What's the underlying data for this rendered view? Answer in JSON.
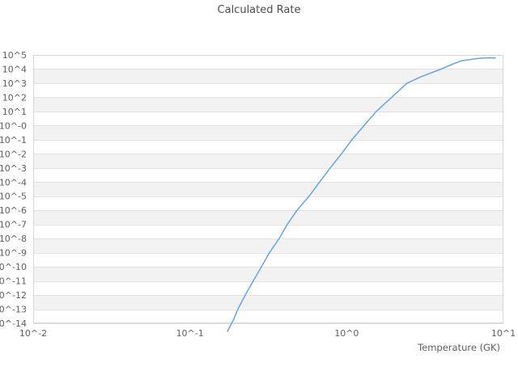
{
  "title": "Calculated Rate",
  "colors": {
    "line": "#6ba3e0",
    "band": "#f2f2f2",
    "grid": "#e2e2e2",
    "frame": "#d6d6d6",
    "title_text": "#4c4c4c",
    "tick_text": "#5f5f5f",
    "background": "#ffffff"
  },
  "chart_data": {
    "type": "line",
    "title": "Calculated Rate",
    "xlabel": "Temperature (GK)",
    "ylabel": "",
    "x_scale": "log10",
    "y_scale": "log10",
    "xlim_log10": [
      -2,
      1
    ],
    "ylim_log10": [
      -14,
      5
    ],
    "x_tick_labels": [
      "10^-2",
      "10^-1",
      "10^0",
      "10^1"
    ],
    "x_tick_log10": [
      -2,
      -1,
      0,
      1
    ],
    "y_tick_labels": [
      "10^5",
      "10^4",
      "10^3",
      "10^2",
      "10^1",
      "10^-0",
      "10^-1",
      "10^-2",
      "10^-3",
      "10^-4",
      "10^-5",
      "10^-6",
      "10^-7",
      "10^-8",
      "10^-9",
      "10^-10",
      "10^-11",
      "10^-12",
      "10^-13",
      "10^-14"
    ],
    "y_tick_log10": [
      5,
      4,
      3,
      2,
      1,
      0,
      -1,
      -2,
      -3,
      -4,
      -5,
      -6,
      -7,
      -8,
      -9,
      -10,
      -11,
      -12,
      -13,
      -14
    ],
    "grid": "horizontal-bands-alternating",
    "legend": "none",
    "series": [
      {
        "name": "Calculated Rate",
        "color": "#6ba3e0",
        "points_log10_T_log10_rate": [
          [
            -0.761,
            -14.57
          ],
          [
            -0.72,
            -13.7
          ],
          [
            -0.694,
            -13.0
          ],
          [
            -0.647,
            -12.0
          ],
          [
            -0.596,
            -11.0
          ],
          [
            -0.544,
            -10.0
          ],
          [
            -0.493,
            -9.0
          ],
          [
            -0.431,
            -8.0
          ],
          [
            -0.379,
            -7.0
          ],
          [
            -0.317,
            -6.0
          ],
          [
            -0.24,
            -5.0
          ],
          [
            -0.173,
            -4.0
          ],
          [
            -0.105,
            -3.0
          ],
          [
            -0.033,
            -2.0
          ],
          [
            0.034,
            -1.0
          ],
          [
            0.111,
            0.0
          ],
          [
            0.189,
            1.0
          ],
          [
            0.287,
            2.0
          ],
          [
            0.385,
            3.0
          ],
          [
            0.473,
            3.45
          ],
          [
            0.602,
            4.0
          ],
          [
            0.68,
            4.37
          ],
          [
            0.731,
            4.58
          ],
          [
            0.79,
            4.68
          ],
          [
            0.834,
            4.75
          ],
          [
            0.88,
            4.79
          ],
          [
            0.912,
            4.8
          ],
          [
            0.948,
            4.78
          ]
        ]
      }
    ]
  }
}
